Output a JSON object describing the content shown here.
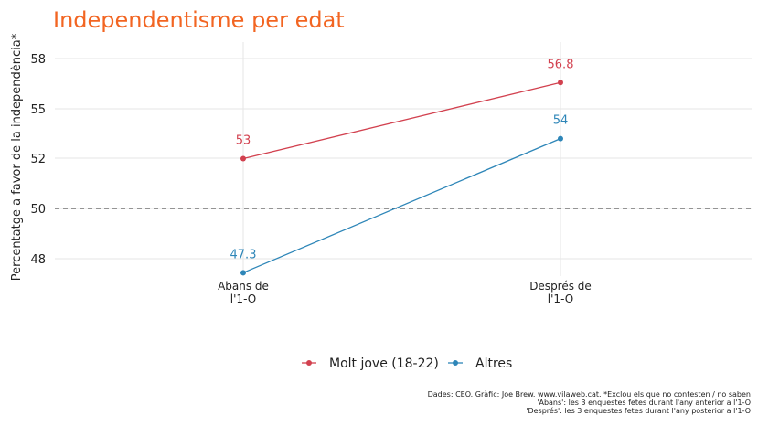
{
  "chart_data": {
    "type": "line",
    "title": "Independentisme per edat",
    "ylabel": "Percentatge a favor de la independència*",
    "xlabel": "",
    "categories": [
      "Abans de\nl'1-O",
      "Després de\nl'1-O"
    ],
    "series": [
      {
        "name": "Molt jove (18-22)",
        "values": [
          53,
          56.8
        ],
        "color": "#d2414f"
      },
      {
        "name": "Altres",
        "values": [
          47.3,
          54
        ],
        "color": "#2e86b8"
      }
    ],
    "yticks": [
      48,
      50,
      52,
      55,
      58
    ],
    "reference_line": 50,
    "grid": true,
    "legend_position": "bottom",
    "caption": [
      "Dades: CEO. Gràfic: Joe Brew. www.vilaweb.cat. *Exclou els que no contesten / no saben",
      "'Abans': les 3 enquestes fetes durant l'any anterior a l'1-O",
      "'Després': les 3 enquestes fetes durant l'any posterior a l'1-O"
    ]
  }
}
